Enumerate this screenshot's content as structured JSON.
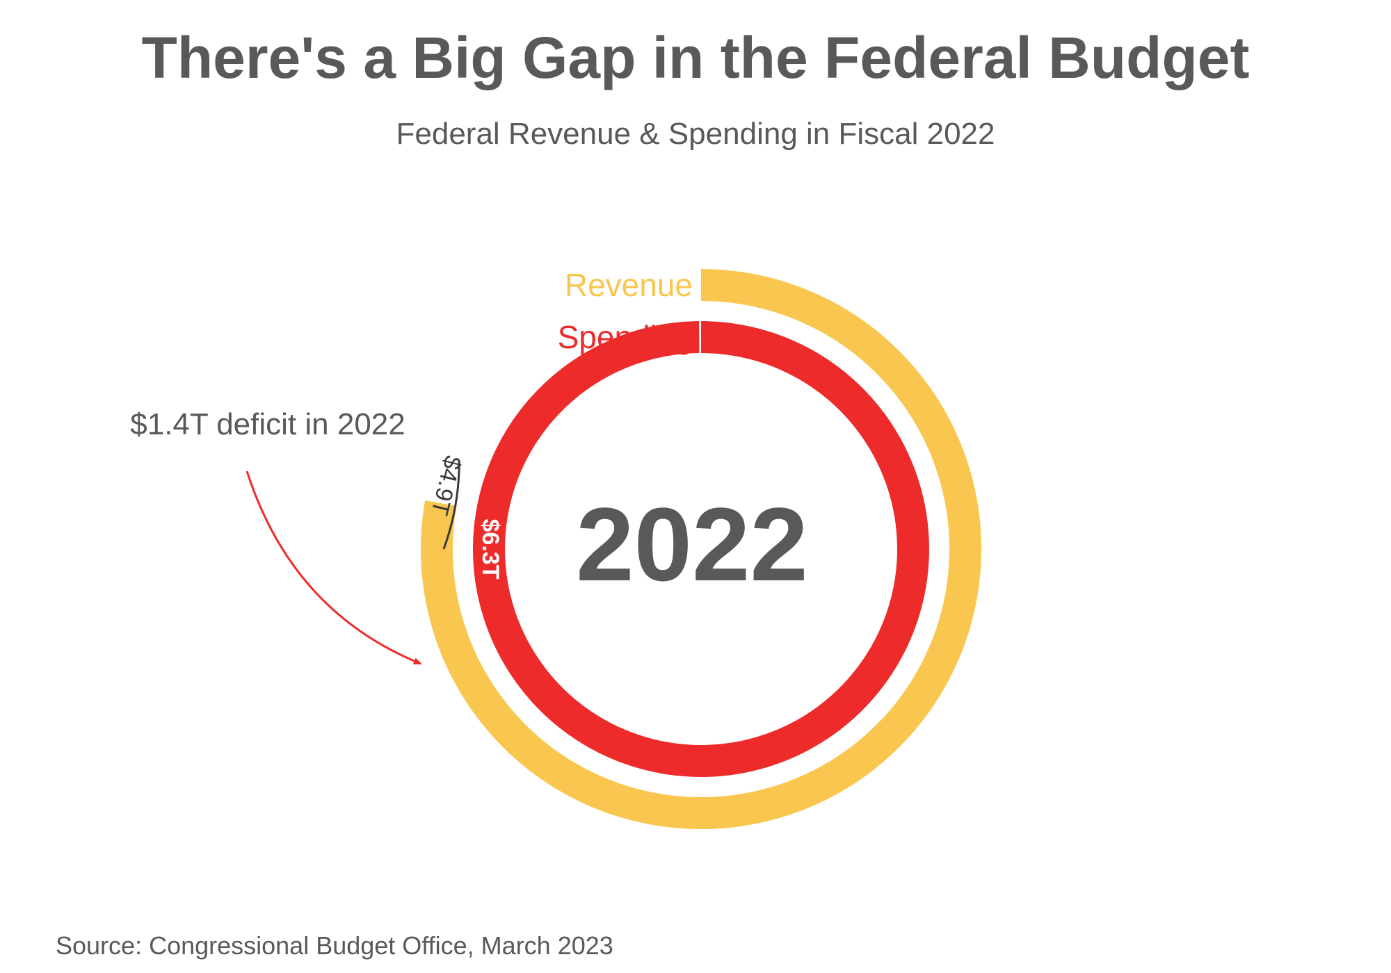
{
  "chart_data": {
    "type": "radial-bar",
    "title": "There's a Big Gap in the Federal Budget",
    "subtitle": "Federal Revenue & Spending in Fiscal 2022",
    "center_label": "2022",
    "series": [
      {
        "name": "Revenue",
        "value": 4.9,
        "value_label": "$4.9T",
        "color": "#f9c74f"
      },
      {
        "name": "Spending",
        "value": 6.3,
        "value_label": "$6.3T",
        "color": "#ee2b2b"
      }
    ],
    "full_circle_value": 6.3,
    "annotation": {
      "text": "$1.4T deficit in 2022",
      "deficit_value": 1.4,
      "arrow_color": "#ee2b2b"
    },
    "source": "Source: Congressional Budget Office, March 2023",
    "colors": {
      "text": "#58595b",
      "gap_line": "#3a3a3a"
    }
  }
}
